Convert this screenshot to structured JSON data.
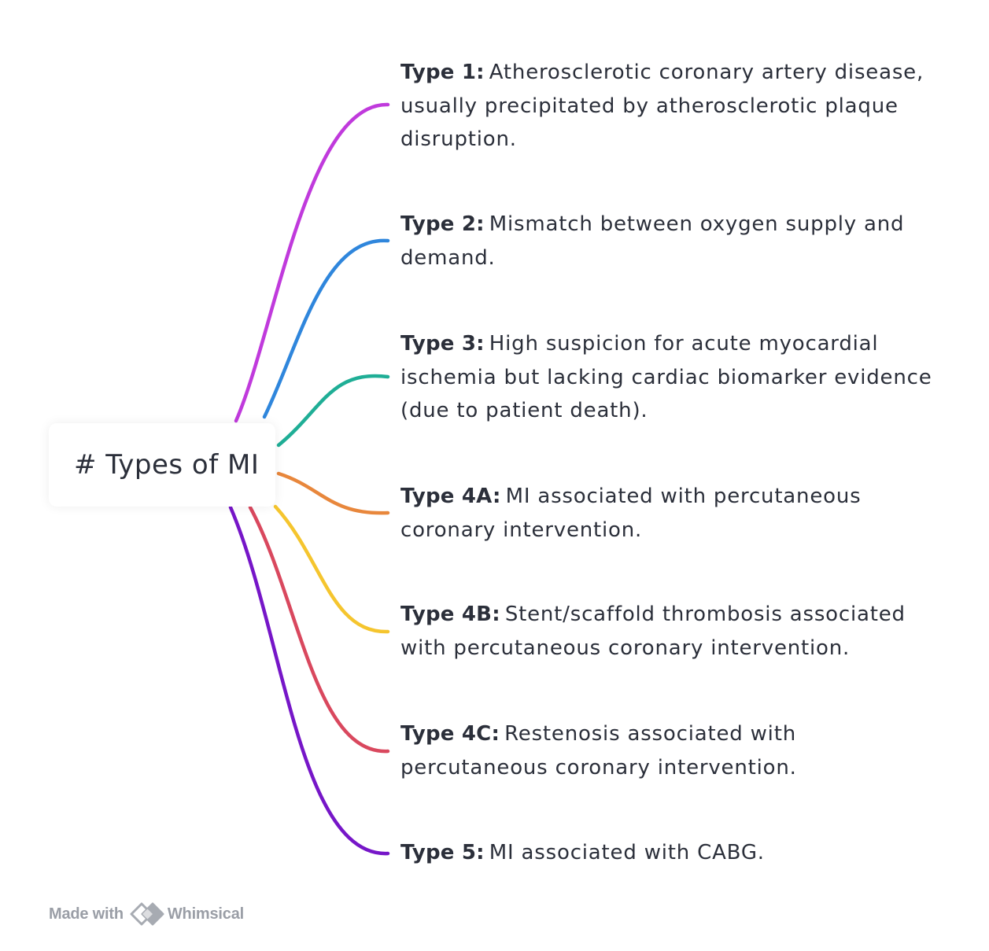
{
  "root": {
    "label": "# Types of MI"
  },
  "branches": [
    {
      "type": "Type 1:",
      "text": "Atherosclerotic coronary artery disease, usually precipitated by atherosclerotic plaque disruption.",
      "color": "#c03adc"
    },
    {
      "type": "Type 2:",
      "text": "Mismatch between oxygen supply and demand.",
      "color": "#2f86dc"
    },
    {
      "type": "Type 3:",
      "text": "High suspicion for acute myocardial ischemia but lacking cardiac biomarker evidence (due to patient death).",
      "color": "#1fae96"
    },
    {
      "type": "Type 4A:",
      "text": "MI associated with percutaneous coronary intervention.",
      "color": "#e8873c"
    },
    {
      "type": "Type 4B:",
      "text": "Stent/scaffold thrombosis associated with percutaneous coronary intervention.",
      "color": "#f5c52e"
    },
    {
      "type": "Type 4C:",
      "text": "Restenosis associated with percutaneous coronary intervention.",
      "color": "#d9485e"
    },
    {
      "type": "Type 5:",
      "text": "MI associated with CABG.",
      "color": "#7616c8"
    }
  ],
  "footer": {
    "made_with": "Made with",
    "brand": "Whimsical"
  }
}
